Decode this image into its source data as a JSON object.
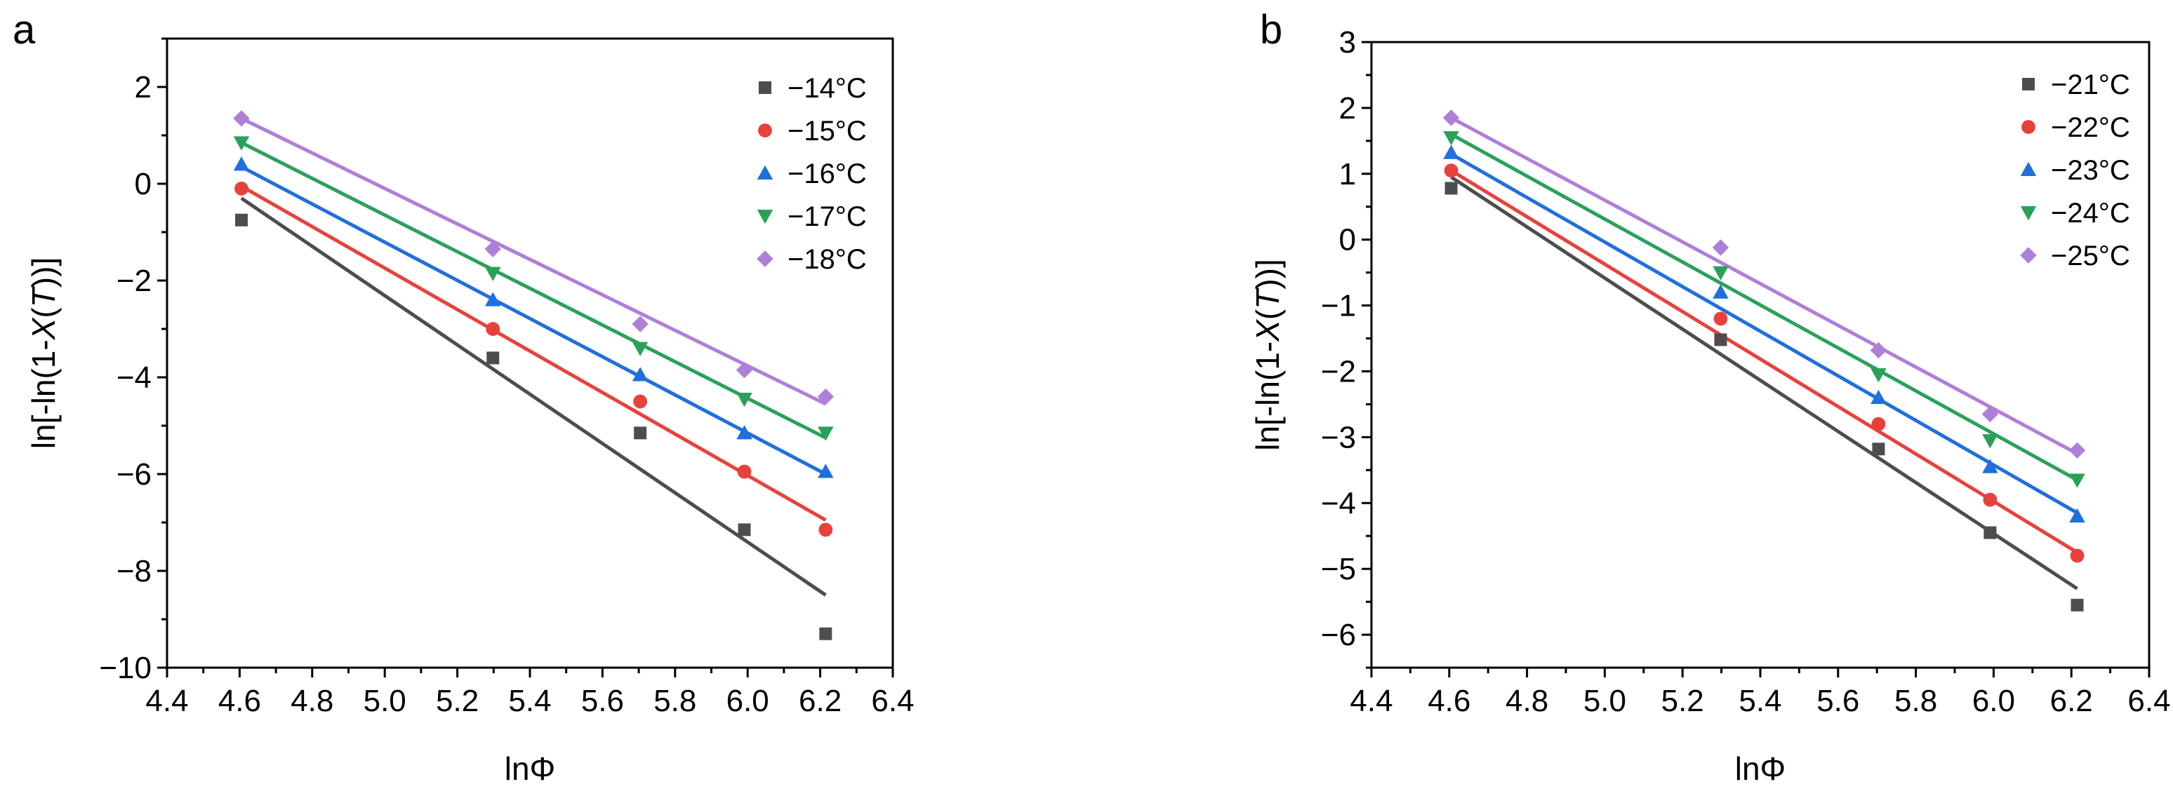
{
  "chart_data": [
    {
      "type": "scatter",
      "panel_label": "a",
      "xlabel": "lnΦ",
      "ylabel_parts": [
        "ln[-ln(1-",
        "X",
        "(",
        "T",
        "))]"
      ],
      "xlim": [
        4.4,
        6.4
      ],
      "ylim": [
        -10,
        3
      ],
      "xticks": [
        4.4,
        4.6,
        4.8,
        5.0,
        5.2,
        5.4,
        5.6,
        5.8,
        6.0,
        6.2,
        6.4
      ],
      "xtick_labels": [
        "4.4",
        "4.6",
        "4.8",
        "5.0",
        "5.2",
        "5.4",
        "5.6",
        "5.8",
        "6.0",
        "6.2",
        "6.4"
      ],
      "yticks": [
        -10,
        -8,
        -6,
        -4,
        -2,
        0,
        2
      ],
      "ytick_labels": [
        "−10",
        "−8",
        "−6",
        "−4",
        "−2",
        "0",
        "2"
      ],
      "legend_position": "top-right",
      "series": [
        {
          "name": "−14°C",
          "color": "#4d4d4d",
          "marker": "square",
          "x": [
            4.605,
            5.298,
            5.704,
            5.991,
            6.215
          ],
          "y": [
            -0.75,
            -3.6,
            -5.15,
            -7.15,
            -9.3
          ],
          "fit": {
            "x": [
              4.605,
              6.215
            ],
            "y": [
              -0.3,
              -8.5
            ]
          }
        },
        {
          "name": "−15°C",
          "color": "#e8413c",
          "marker": "circle",
          "x": [
            4.605,
            5.298,
            5.704,
            5.991,
            6.215
          ],
          "y": [
            -0.1,
            -3.0,
            -4.5,
            -5.95,
            -7.15
          ],
          "fit": {
            "x": [
              4.605,
              6.215
            ],
            "y": [
              -0.05,
              -6.95
            ]
          }
        },
        {
          "name": "−16°C",
          "color": "#1f6fdd",
          "marker": "triangle-up",
          "x": [
            4.605,
            5.298,
            5.704,
            5.991,
            6.215
          ],
          "y": [
            0.4,
            -2.4,
            -3.95,
            -5.15,
            -5.95
          ],
          "fit": {
            "x": [
              4.605,
              6.215
            ],
            "y": [
              0.35,
              -6.0
            ]
          }
        },
        {
          "name": "−17°C",
          "color": "#2aa15a",
          "marker": "triangle-down",
          "x": [
            4.605,
            5.298,
            5.704,
            5.991,
            6.215
          ],
          "y": [
            0.85,
            -1.85,
            -3.4,
            -4.45,
            -5.15
          ],
          "fit": {
            "x": [
              4.605,
              6.215
            ],
            "y": [
              0.85,
              -5.25
            ]
          }
        },
        {
          "name": "−18°C",
          "color": "#ae7fd9",
          "marker": "diamond",
          "x": [
            4.605,
            5.298,
            5.704,
            5.991,
            6.215
          ],
          "y": [
            1.35,
            -1.35,
            -2.9,
            -3.85,
            -4.4
          ],
          "fit": {
            "x": [
              4.605,
              6.215
            ],
            "y": [
              1.35,
              -4.55
            ]
          }
        }
      ]
    },
    {
      "type": "scatter",
      "panel_label": "b",
      "xlabel": "lnΦ",
      "ylabel_parts": [
        "ln[-ln(1-",
        "X",
        "(",
        "T",
        "))]"
      ],
      "xlim": [
        4.4,
        6.4
      ],
      "ylim": [
        -6.5,
        3
      ],
      "xticks": [
        4.4,
        4.6,
        4.8,
        5.0,
        5.2,
        5.4,
        5.6,
        5.8,
        6.0,
        6.2,
        6.4
      ],
      "xtick_labels": [
        "4.4",
        "4.6",
        "4.8",
        "5.0",
        "5.2",
        "5.4",
        "5.6",
        "5.8",
        "6.0",
        "6.2",
        "6.4"
      ],
      "yticks": [
        -6,
        -5,
        -4,
        -3,
        -2,
        -1,
        0,
        1,
        2,
        3
      ],
      "ytick_labels": [
        "−6",
        "−5",
        "−4",
        "−3",
        "−2",
        "−1",
        "0",
        "1",
        "2",
        "3"
      ],
      "legend_position": "top-right",
      "series": [
        {
          "name": "−21°C",
          "color": "#4d4d4d",
          "marker": "square",
          "x": [
            4.605,
            5.298,
            5.704,
            5.991,
            6.215
          ],
          "y": [
            0.78,
            -1.52,
            -3.18,
            -4.45,
            -5.55
          ],
          "fit": {
            "x": [
              4.605,
              6.215
            ],
            "y": [
              0.95,
              -5.3
            ]
          }
        },
        {
          "name": "−22°C",
          "color": "#e8413c",
          "marker": "circle",
          "x": [
            4.605,
            5.298,
            5.704,
            5.991,
            6.215
          ],
          "y": [
            1.05,
            -1.2,
            -2.8,
            -3.95,
            -4.8
          ],
          "fit": {
            "x": [
              4.605,
              6.215
            ],
            "y": [
              1.05,
              -4.75
            ]
          }
        },
        {
          "name": "−23°C",
          "color": "#1f6fdd",
          "marker": "triangle-up",
          "x": [
            4.605,
            5.298,
            5.704,
            5.991,
            6.215
          ],
          "y": [
            1.32,
            -0.8,
            -2.4,
            -3.45,
            -4.2
          ],
          "fit": {
            "x": [
              4.605,
              6.215
            ],
            "y": [
              1.3,
              -4.15
            ]
          }
        },
        {
          "name": "−24°C",
          "color": "#2aa15a",
          "marker": "triangle-down",
          "x": [
            4.605,
            5.298,
            5.704,
            5.991,
            6.215
          ],
          "y": [
            1.55,
            -0.5,
            -2.05,
            -3.05,
            -3.65
          ],
          "fit": {
            "x": [
              4.605,
              6.215
            ],
            "y": [
              1.6,
              -3.65
            ]
          }
        },
        {
          "name": "−25°C",
          "color": "#ae7fd9",
          "marker": "diamond",
          "x": [
            4.605,
            5.298,
            5.704,
            5.991,
            6.215
          ],
          "y": [
            1.85,
            -0.12,
            -1.68,
            -2.65,
            -3.2
          ],
          "fit": {
            "x": [
              4.605,
              6.215
            ],
            "y": [
              1.85,
              -3.25
            ]
          }
        }
      ]
    }
  ]
}
